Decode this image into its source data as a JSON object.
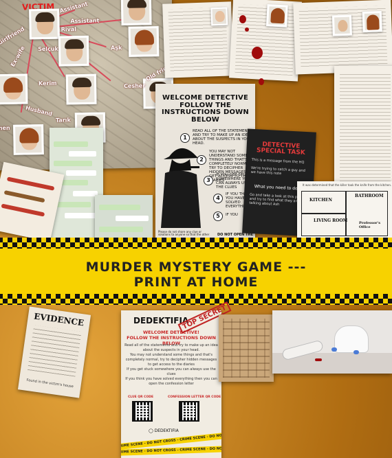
{
  "board": {
    "victim_label": "VICTIM",
    "relations": [
      "Assistant",
      "Rival",
      "Assistant",
      "Girlfriend",
      "Ex-wife",
      "Aşk",
      "Selçuk",
      "Kerim",
      "Old friend",
      "Cesher",
      "Husband",
      "Tarık",
      "men"
    ]
  },
  "welcome_card": {
    "heading": "WELCOME DETECTIVE FOLLOW THE INSTRUCTIONS DOWN BELOW",
    "steps": [
      {
        "n": "1",
        "text": "READ ALL OF THE STATEMENTS AND TRY TO MAKE UP AN IDEA ABOUT THE SUSPECTS IN YOUR HEAD."
      },
      {
        "n": "2",
        "text": "YOU MAY NOT UNDERSTAND SOME THINGS AND THAT'S COMPLETELY NORMAL, TRY TO DECIPHER HIDDEN MESSAGES TO GET ACCESS TO THE DIARIES"
      },
      {
        "n": "3",
        "text": "IF YOU GET STUCK SOMEWHERE YOU CAN ALWAYS USE THE CLUES"
      },
      {
        "n": "4",
        "text": "IF YOU THINK YOU HAVE SOLVED EVERYTHING"
      },
      {
        "n": "5",
        "text": "IF YOU"
      }
    ],
    "footer": "Please do not share any clue or solutions to anyone so that the other",
    "footer2": "DO NOT OPEN THE"
  },
  "special_task": {
    "title": "DETECTIVE SPECIAL TASK",
    "line1": "This is a message from the HQ",
    "line2": "We're trying to catch a guy and we have this note",
    "question": "What you need to do is;",
    "body": "Go and take a look at this page and try to find what they are talking about Ash"
  },
  "floor_plan": {
    "caption": "It was determined that the killer took the knife from the kitchen.",
    "rooms": [
      "KITCHEN",
      "BATHROOM",
      "LIVING ROOM",
      "Professor's Office"
    ]
  },
  "banner": {
    "line1": "MURDER MYSTERY GAME ---",
    "line2": "PRINT AT HOME"
  },
  "evidence": {
    "title": "EVIDENCE",
    "footer": "Found in the victim's house"
  },
  "dedek": {
    "brand": "DEDEKTIFIA",
    "sub1": "WELCOME DETECTIVE!",
    "sub2": "FOLLOW THE INSTRUCTIONS DOWN BELOW",
    "lines": [
      "Read all of the statements and try to make up an idea about the suspects in your head.",
      "You may not understand some things and that's completely normal, try to decipher hidden messages to get access to the diaries",
      "If you get stuck somewhere you can always use the clues",
      "If you think you have solved everything then you can open the confession letter"
    ],
    "qr_left": "CLUE QR CODE",
    "qr_right": "CONFESSION LETTER QR CODE",
    "handle": "DEDEKTIFIA",
    "tape": "CRIME SCENE - DO NOT CROSS - CRIME SCENE - DO NOT CROSS - CRIME SCENE"
  },
  "top_secret": "TOP SECRET"
}
